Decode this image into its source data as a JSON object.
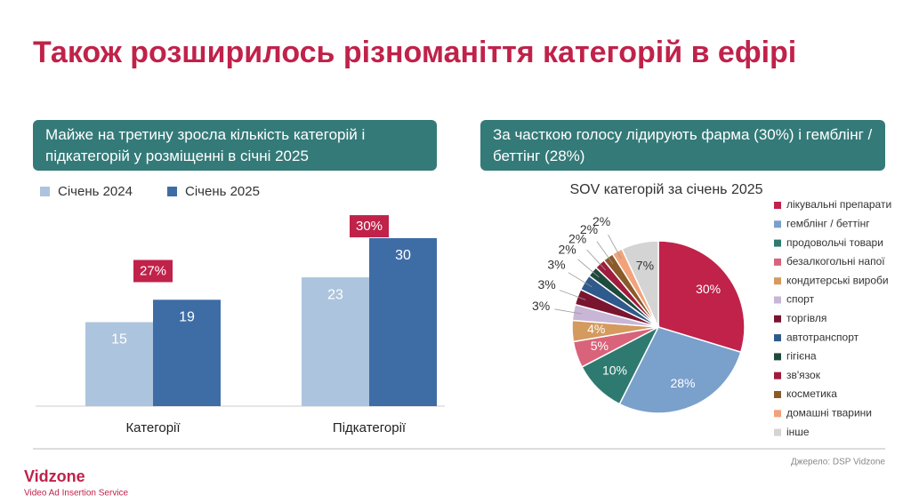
{
  "title": "Також розширилось різноманіття категорій в ефірі",
  "chart_data": [
    {
      "type": "bar",
      "header": "Майже на третину зросла кількість категорій і підкатегорій у розміщенні в січні 2025",
      "categories": [
        "Категорії",
        "Підкатегорії"
      ],
      "series": [
        {
          "name": "Січень 2024",
          "color": "#adc4de",
          "values": [
            15,
            23
          ]
        },
        {
          "name": "Січень 2025",
          "color": "#3e6da6",
          "values": [
            19,
            30
          ]
        }
      ],
      "annotations": [
        "27%",
        "30%"
      ],
      "ylim": [
        0,
        30
      ]
    },
    {
      "type": "pie",
      "header": "За часткою голосу лідирують фарма (30%) і гемблінг / беттінг (28%)",
      "title": "SOV категорій за січень 2025",
      "categories": [
        "лікувальні препарати",
        "гемблінг / беттінг",
        "продовольчі товари",
        "безалкогольні напої",
        "кондитерські вироби",
        "спорт",
        "торгівля",
        "автотранспорт",
        "гігієна",
        "зв'язок",
        "косметика",
        "домашні тварини",
        "інше"
      ],
      "values": [
        30,
        28,
        10,
        5,
        4,
        3,
        3,
        3,
        2,
        2,
        2,
        2,
        7
      ],
      "value_labels": [
        "30%",
        "28%",
        "10%",
        "5%",
        "4%",
        "3%",
        "3%",
        "3%",
        "2%",
        "2%",
        "2%",
        "2%",
        "7%"
      ],
      "colors": [
        "#c0224a",
        "#7aa0cc",
        "#2e7a70",
        "#d9637a",
        "#d49a5e",
        "#c8b6d6",
        "#7a1530",
        "#2f5a8c",
        "#1f4a3e",
        "#a01c3c",
        "#8a5a2a",
        "#f2a27a",
        "#d4d4d4"
      ]
    }
  ],
  "source": "Джерело: DSP Vidzone",
  "logo": {
    "name": "Vidzone",
    "tagline": "Video Ad Insertion Service"
  }
}
